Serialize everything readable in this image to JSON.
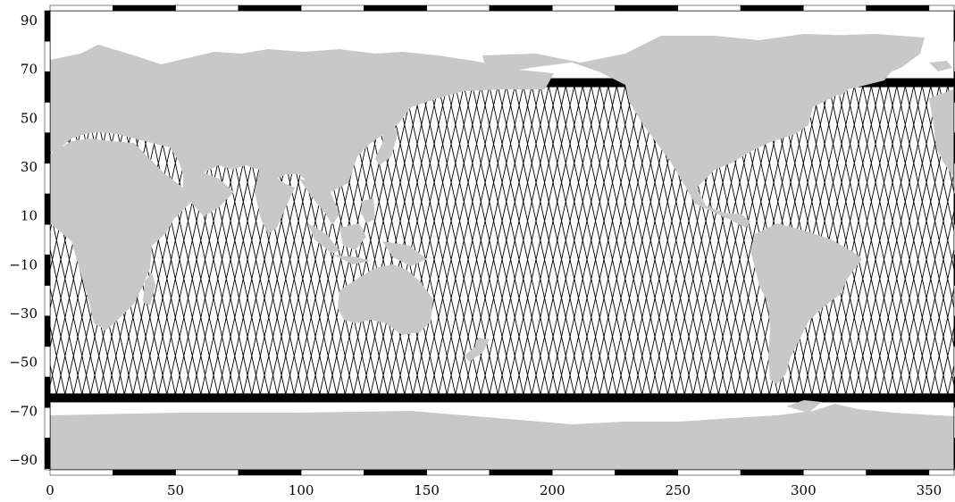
{
  "map": {
    "projection": "equirectangular",
    "colors": {
      "land": "#c8c8c8",
      "ocean": "#ffffff",
      "tracks": "#000000",
      "frame_dark": "#000000",
      "frame_light": "#ffffff"
    },
    "x_axis": {
      "range": [
        0,
        360
      ],
      "ticks": [
        0,
        50,
        100,
        150,
        200,
        250,
        300,
        350
      ],
      "tick_labels": [
        "0",
        "50",
        "100",
        "150",
        "200",
        "250",
        "300",
        "350"
      ]
    },
    "y_axis": {
      "range": [
        -94,
        94
      ],
      "ticks": [
        90,
        70,
        50,
        30,
        10,
        -10,
        -30,
        -50,
        -70,
        -90
      ],
      "tick_labels": [
        "90",
        "70",
        "50",
        "30",
        "10",
        "−10",
        "−30",
        "−50",
        "−70",
        "−90"
      ]
    },
    "track_coverage_lat": [
      -66,
      66
    ],
    "frame_checker_step_deg": 25
  }
}
